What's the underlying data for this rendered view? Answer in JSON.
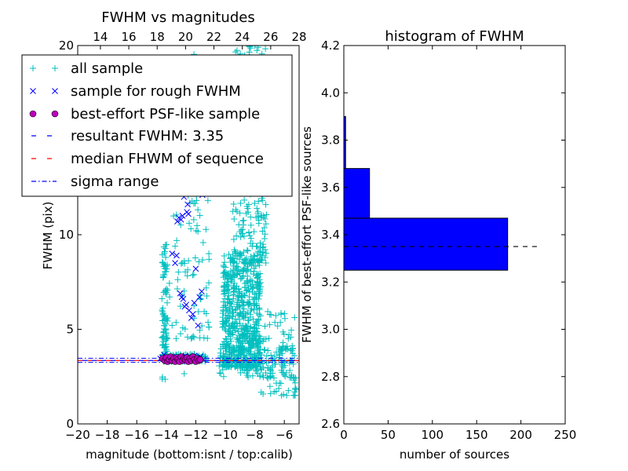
{
  "chart_data": [
    {
      "type": "scatter",
      "title": "FWHM vs magnitudes",
      "xlabel": "magnitude (bottom:isnt / top:calib)",
      "ylabel": "FWHM (pix)",
      "xlim": [
        -20,
        -5
      ],
      "ylim": [
        0,
        20
      ],
      "top_xlim": [
        12.4,
        28
      ],
      "xticks": [
        "−20",
        "−18",
        "−16",
        "−14",
        "−12",
        "−10",
        "−8",
        "−6"
      ],
      "xtick_values": [
        -20,
        -18,
        -16,
        -14,
        -12,
        -10,
        -8,
        -6
      ],
      "yticks": [
        "0",
        "5",
        "10"
      ],
      "ytick_values": [
        0,
        5,
        10
      ],
      "top_xticks": [
        "14",
        "16",
        "18",
        "20",
        "22",
        "24",
        "26",
        "28"
      ],
      "top_xtick_values": [
        14,
        16,
        18,
        20,
        22,
        24,
        26,
        28
      ],
      "grid": false,
      "legend_position": "upper-left",
      "series": [
        {
          "name": "all sample",
          "marker": "plus",
          "color": "#00bfbf",
          "clusters": [
            {
              "x": [
                -14.3,
                -13.9
              ],
              "y": [
                3.3,
                9.5
              ],
              "n": 90
            },
            {
              "x": [
                -14.2,
                -11.3
              ],
              "y": [
                3.3,
                3.7
              ],
              "n": 120
            },
            {
              "x": [
                -13.8,
                -11.0
              ],
              "y": [
                4.5,
                16.0
              ],
              "n": 90
            },
            {
              "x": [
                -12.5,
                -11.8
              ],
              "y": [
                10.0,
                20.0
              ],
              "n": 40
            },
            {
              "x": [
                -10.2,
                -7.6
              ],
              "y": [
                3.0,
                9.0
              ],
              "n": 650
            },
            {
              "x": [
                -9.6,
                -7.2
              ],
              "y": [
                8.5,
                20.0
              ],
              "n": 260
            },
            {
              "x": [
                -10.5,
                -5.2
              ],
              "y": [
                2.4,
                4.2
              ],
              "n": 110
            },
            {
              "x": [
                -7.6,
                -5.2
              ],
              "y": [
                1.5,
                6.0
              ],
              "n": 80
            },
            {
              "x": [
                -14.5,
                -12.0
              ],
              "y": [
                2.2,
                2.8
              ],
              "n": 4
            }
          ]
        },
        {
          "name": "sample for rough FWHM",
          "marker": "x",
          "color": "#0000ff",
          "x": [
            -14.4,
            -14.25,
            -14.1,
            -13.95,
            -13.8,
            -14.15,
            -13.6,
            -13.4,
            -13.3,
            -13.05,
            -12.95,
            -12.85,
            -12.75,
            -12.65,
            -12.45,
            -12.3,
            -12.2,
            -12.1,
            -12.6,
            -12.5,
            -12.55,
            -13.0,
            -12.9,
            -12.8,
            -13.25,
            -13.15,
            -12.0,
            -11.85,
            -11.6,
            -11.75,
            -11.55,
            -13.6,
            -13.55,
            -13.45,
            -13.3,
            -13.1,
            -13.0,
            -12.9,
            -12.75,
            -12.7,
            -12.65,
            -12.5,
            -12.45,
            -12.3,
            -12.2,
            -12.1,
            -12.0,
            -11.9,
            -11.8,
            -11.7,
            -11.5
          ],
          "y": [
            3.45,
            3.5,
            3.4,
            3.55,
            3.3,
            3.65,
            9.0,
            8.5,
            8.9,
            6.9,
            6.7,
            6.6,
            6.2,
            6.3,
            6.0,
            5.6,
            5.8,
            6.4,
            11.2,
            11.1,
            11.6,
            10.8,
            11.0,
            12.0,
            10.7,
            10.9,
            8.2,
            5.2,
            7.0,
            6.7,
            12.1,
            3.4,
            3.5,
            3.45,
            3.55,
            3.4,
            3.5,
            3.3,
            3.45,
            3.6,
            3.5,
            3.4,
            3.55,
            3.45,
            3.5,
            3.6,
            3.4,
            3.5,
            3.45,
            3.55,
            3.4
          ]
        },
        {
          "name": "best-effort PSF-like sample",
          "marker": "circle",
          "color": "#bf00bf",
          "x": [
            -14.25,
            -14.1,
            -14.0,
            -13.9,
            -13.8,
            -13.7,
            -13.6,
            -13.5,
            -13.4,
            -13.3,
            -13.2,
            -13.1,
            -13.0,
            -12.9,
            -12.8,
            -12.7,
            -12.6,
            -12.5,
            -12.4,
            -12.3,
            -12.2,
            -12.1,
            -12.0,
            -11.9,
            -11.8,
            -11.7
          ],
          "y": [
            3.45,
            3.35,
            3.5,
            3.3,
            3.4,
            3.55,
            3.35,
            3.45,
            3.3,
            3.5,
            3.4,
            3.3,
            3.55,
            3.35,
            3.45,
            3.4,
            3.5,
            3.3,
            3.45,
            3.35,
            3.55,
            3.4,
            3.3,
            3.45,
            3.35,
            3.4
          ]
        },
        {
          "name": "resultant FWHM: 3.35",
          "line": "dashed",
          "color": "#0000ff",
          "y": 3.35
        },
        {
          "name": "median FHWM of sequence",
          "line": "dashed",
          "color": "#ff0000",
          "y": 3.35
        },
        {
          "name": "sigma range",
          "line": "dashdot",
          "color": "#0000ff",
          "y": [
            3.25,
            3.47
          ]
        }
      ]
    },
    {
      "type": "bar",
      "orientation": "horizontal",
      "title": "histogram of FWHM",
      "xlabel": "number of sources",
      "ylabel": "FWHM of best-effort PSF-like sources",
      "xlim": [
        0,
        250
      ],
      "ylim": [
        2.6,
        4.2
      ],
      "xticks": [
        "0",
        "50",
        "100",
        "150",
        "200",
        "250"
      ],
      "xtick_values": [
        0,
        50,
        100,
        150,
        200,
        250
      ],
      "yticks": [
        "2.6",
        "2.8",
        "3.0",
        "3.2",
        "3.4",
        "3.6",
        "3.8",
        "4.0",
        "4.2"
      ],
      "ytick_values": [
        2.6,
        2.8,
        3.0,
        3.2,
        3.4,
        3.6,
        3.8,
        4.0,
        4.2
      ],
      "bar_color": "#0000ff",
      "bins": [
        {
          "low": 3.25,
          "high": 3.47,
          "count": 185
        },
        {
          "low": 3.47,
          "high": 3.68,
          "count": 29
        },
        {
          "low": 3.68,
          "high": 3.9,
          "count": 2
        },
        {
          "low": 3.9,
          "high": 4.11,
          "count": 0
        }
      ],
      "reference_line": {
        "y": 3.35,
        "x_range": [
          0,
          218
        ],
        "style": "dashed",
        "color": "#000000"
      }
    }
  ]
}
